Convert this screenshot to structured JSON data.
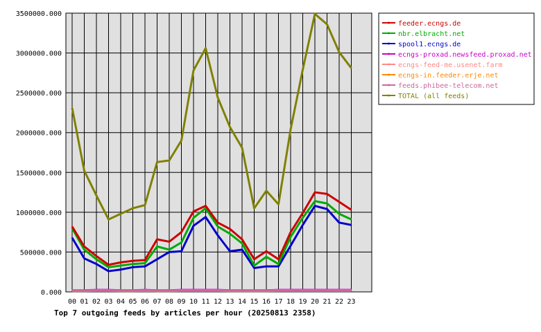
{
  "chart_data": {
    "type": "line",
    "title": "Top 7 outgoing feeds by articles per hour (20250813 2358)",
    "xlabel": "",
    "ylabel": "",
    "ylim": [
      0,
      3500000
    ],
    "ytick_labels": [
      "0.000",
      "500000.000",
      "1000000.000",
      "1500000.000",
      "2000000.000",
      "2500000.000",
      "3000000.000",
      "3500000.000"
    ],
    "ytick_values": [
      0,
      500000,
      1000000,
      1500000,
      2000000,
      2500000,
      3000000,
      3500000
    ],
    "grid": true,
    "legend_position": "top-right",
    "categories": [
      "00",
      "01",
      "02",
      "03",
      "04",
      "05",
      "06",
      "07",
      "08",
      "09",
      "10",
      "11",
      "12",
      "13",
      "14",
      "15",
      "16",
      "17",
      "18",
      "19",
      "20",
      "21",
      "22",
      "23"
    ],
    "series": [
      {
        "name": "feeder.ecngs.de",
        "color": "#cc0000",
        "values": [
          820000,
          570000,
          450000,
          340000,
          370000,
          390000,
          400000,
          660000,
          630000,
          750000,
          1010000,
          1080000,
          870000,
          790000,
          660000,
          410000,
          510000,
          410000,
          750000,
          990000,
          1250000,
          1230000,
          1130000,
          1030000
        ]
      },
      {
        "name": "nbr.elbracht.net",
        "color": "#00aa00",
        "values": [
          800000,
          530000,
          410000,
          310000,
          330000,
          350000,
          360000,
          570000,
          530000,
          620000,
          930000,
          1050000,
          820000,
          730000,
          610000,
          330000,
          440000,
          350000,
          690000,
          930000,
          1140000,
          1110000,
          980000,
          910000
        ]
      },
      {
        "name": "spool1.ecngs.de",
        "color": "#0000cc",
        "values": [
          680000,
          420000,
          350000,
          260000,
          280000,
          310000,
          320000,
          410000,
          500000,
          510000,
          830000,
          940000,
          710000,
          510000,
          530000,
          300000,
          320000,
          320000,
          580000,
          840000,
          1080000,
          1040000,
          870000,
          840000
        ]
      },
      {
        "name": "ecngs-proxad.newsfeed.proxad.net",
        "color": "#cc00cc",
        "values": [
          20000,
          20000,
          25000,
          25000,
          20000,
          20000,
          25000,
          20000,
          20000,
          25000,
          25000,
          25000,
          25000,
          20000,
          20000,
          20000,
          20000,
          25000,
          25000,
          25000,
          25000,
          25000,
          25000,
          25000
        ]
      },
      {
        "name": "ecngs-feed-me.usenet.farm",
        "color": "#ff8888",
        "values": [
          15000,
          15000,
          18000,
          18000,
          15000,
          15000,
          18000,
          15000,
          15000,
          18000,
          18000,
          18000,
          18000,
          15000,
          15000,
          15000,
          15000,
          18000,
          18000,
          18000,
          18000,
          18000,
          18000,
          18000
        ]
      },
      {
        "name": "ecngs-in.feeder.erje.net",
        "color": "#ff8800",
        "values": [
          12000,
          12000,
          14000,
          14000,
          12000,
          12000,
          14000,
          12000,
          12000,
          14000,
          14000,
          14000,
          14000,
          12000,
          12000,
          12000,
          12000,
          14000,
          14000,
          14000,
          14000,
          14000,
          14000,
          14000
        ]
      },
      {
        "name": "feeds.phibee-telecom.net",
        "color": "#cc6699",
        "values": [
          18000,
          18000,
          22000,
          22000,
          18000,
          18000,
          22000,
          18000,
          18000,
          22000,
          22000,
          22000,
          22000,
          18000,
          18000,
          18000,
          18000,
          22000,
          22000,
          22000,
          22000,
          22000,
          22000,
          22000
        ]
      },
      {
        "name": "TOTAL (all feeds)",
        "color": "#808000",
        "values": [
          2310000,
          1520000,
          1210000,
          910000,
          980000,
          1050000,
          1090000,
          1630000,
          1650000,
          1900000,
          2780000,
          3060000,
          2440000,
          2070000,
          1810000,
          1050000,
          1270000,
          1100000,
          2040000,
          2790000,
          3490000,
          3360000,
          3010000,
          2810000
        ]
      }
    ]
  }
}
